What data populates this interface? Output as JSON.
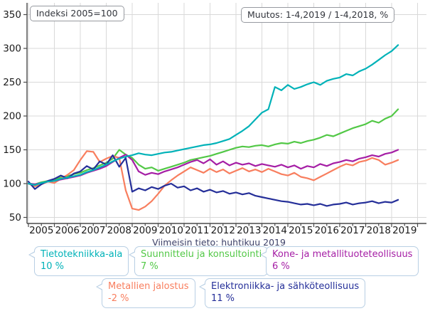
{
  "chart_data": {
    "type": "line",
    "index_note": "Indeksi 2005=100",
    "change_note": "Muutos: 1-4,2019 / 1-4,2018, %",
    "latest_note": "Viimeisin tieto: huhtikuu 2019",
    "x_start": 2005.0,
    "x_step": 0.25,
    "x_end": 2019.25,
    "year_labels": [
      "2005",
      "2006",
      "2007",
      "2008",
      "2009",
      "2010",
      "2011",
      "2012",
      "2013",
      "2014",
      "2015",
      "2016",
      "2017",
      "2018",
      "2019"
    ],
    "ylim": [
      50,
      350
    ],
    "y_ticks": [
      50,
      100,
      150,
      200,
      250,
      300,
      350
    ],
    "grid": true,
    "legend_position": "bottom",
    "axis_color": "#4a4a4a",
    "grid_color": "#d9d9d9",
    "tick_label_color": "#1a1a1a",
    "series": [
      {
        "name": "Tietotekniikka-ala",
        "change_pct": "10 %",
        "color": "#00b2b8",
        "values": [
          100,
          98,
          101,
          103,
          104,
          107,
          109,
          111,
          113,
          117,
          120,
          124,
          128,
          133,
          137,
          140,
          142,
          145,
          143,
          142,
          144,
          146,
          147,
          149,
          151,
          153,
          155,
          157,
          158,
          160,
          163,
          166,
          172,
          178,
          185,
          195,
          205,
          210,
          243,
          238,
          246,
          240,
          243,
          247,
          250,
          246,
          252,
          255,
          257,
          262,
          260,
          266,
          270,
          276,
          283,
          290,
          296,
          305
        ]
      },
      {
        "name": "Suunnittelu ja konsultointi",
        "change_pct": "7 %",
        "color": "#52c846",
        "values": [
          100,
          99,
          102,
          104,
          106,
          109,
          111,
          114,
          116,
          120,
          123,
          127,
          131,
          137,
          150,
          143,
          138,
          128,
          122,
          124,
          119,
          122,
          125,
          128,
          131,
          135,
          137,
          139,
          141,
          144,
          147,
          150,
          153,
          155,
          154,
          156,
          157,
          155,
          158,
          160,
          159,
          162,
          160,
          163,
          165,
          168,
          172,
          170,
          174,
          178,
          182,
          185,
          188,
          193,
          190,
          196,
          200,
          210
        ]
      },
      {
        "name": "Kone- ja metallituoteteollisuus",
        "change_pct": "6 %",
        "color": "#a51ea5",
        "values": [
          100,
          99,
          101,
          103,
          104,
          106,
          108,
          110,
          112,
          116,
          119,
          122,
          126,
          132,
          138,
          143,
          135,
          118,
          113,
          116,
          114,
          118,
          121,
          124,
          128,
          132,
          135,
          130,
          136,
          128,
          133,
          127,
          131,
          128,
          130,
          126,
          129,
          127,
          125,
          128,
          124,
          127,
          122,
          126,
          124,
          129,
          126,
          130,
          132,
          135,
          133,
          137,
          139,
          142,
          140,
          144,
          146,
          150
        ]
      },
      {
        "name": "Metallien jalostus",
        "change_pct": "-2 %",
        "color": "#f87e5e",
        "values": [
          100,
          96,
          99,
          103,
          101,
          107,
          113,
          120,
          135,
          148,
          147,
          132,
          137,
          141,
          138,
          90,
          63,
          61,
          66,
          74,
          85,
          97,
          105,
          112,
          118,
          124,
          120,
          116,
          122,
          117,
          121,
          115,
          119,
          123,
          118,
          121,
          117,
          122,
          118,
          114,
          112,
          116,
          110,
          108,
          105,
          110,
          115,
          120,
          125,
          129,
          127,
          132,
          134,
          138,
          135,
          128,
          131,
          135
        ]
      },
      {
        "name": "Elektroniikka- ja sähköteollisuus",
        "change_pct": "11 %",
        "color": "#252f99",
        "values": [
          103,
          92,
          99,
          104,
          107,
          112,
          108,
          115,
          118,
          126,
          121,
          133,
          128,
          142,
          125,
          138,
          88,
          93,
          90,
          95,
          92,
          97,
          100,
          94,
          96,
          90,
          93,
          88,
          91,
          87,
          89,
          85,
          87,
          84,
          86,
          82,
          80,
          78,
          76,
          74,
          73,
          71,
          69,
          70,
          68,
          70,
          67,
          69,
          70,
          72,
          69,
          71,
          72,
          74,
          71,
          73,
          72,
          76
        ]
      }
    ]
  }
}
